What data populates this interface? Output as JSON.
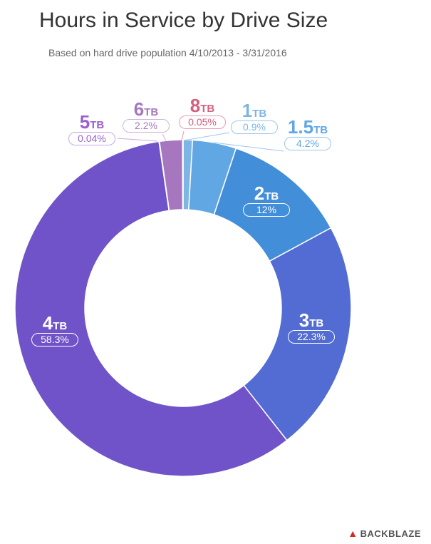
{
  "chart_data": {
    "type": "pie",
    "title": "Hours in Service by Drive Size",
    "subtitle": "Based on hard drive population 4/10/2013 - 3/31/2016",
    "slices": [
      {
        "num": "1",
        "unit": "TB",
        "label": "1TB",
        "value": 0.9,
        "pct": "0.9%",
        "color": "#7db6e4"
      },
      {
        "num": "1.5",
        "unit": "TB",
        "label": "1.5TB",
        "value": 4.2,
        "pct": "4.2%",
        "color": "#60a7e4"
      },
      {
        "num": "2",
        "unit": "TB",
        "label": "2TB",
        "value": 12,
        "pct": "12%",
        "color": "#428ed9"
      },
      {
        "num": "3",
        "unit": "TB",
        "label": "3TB",
        "value": 22.3,
        "pct": "22.3%",
        "color": "#536cd3"
      },
      {
        "num": "4",
        "unit": "TB",
        "label": "4TB",
        "value": 58.3,
        "pct": "58.3%",
        "color": "#7153c9"
      },
      {
        "num": "5",
        "unit": "TB",
        "label": "5TB",
        "value": 0.04,
        "pct": "0.04%",
        "color": "#9a5fd0"
      },
      {
        "num": "6",
        "unit": "TB",
        "label": "6TB",
        "value": 2.2,
        "pct": "2.2%",
        "color": "#a677bf"
      },
      {
        "num": "8",
        "unit": "TB",
        "label": "8TB",
        "value": 0.05,
        "pct": "0.05%",
        "color": "#d45f7f"
      }
    ]
  },
  "brand": {
    "logo": "BACKBLAZE"
  }
}
